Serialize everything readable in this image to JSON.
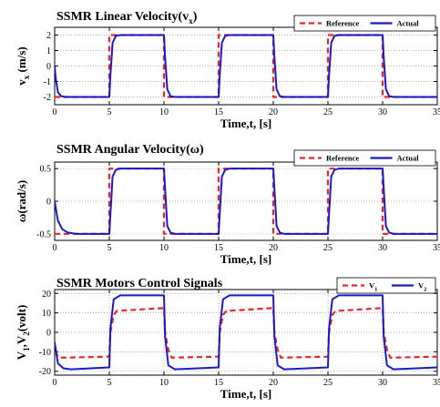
{
  "chart_data": [
    {
      "type": "line",
      "title": "SSMR Linear Velocity(v",
      "title_sub": "x",
      "title_close": ")",
      "xlabel": "Time,t, [s]",
      "ylabel": "v",
      "ylabel_sub": "x",
      "ylabel_unit": "(m/s)",
      "xlim": [
        0,
        35
      ],
      "ylim": [
        -2.5,
        2.5
      ],
      "xticks": [
        0,
        5,
        10,
        15,
        20,
        25,
        30,
        35
      ],
      "yticks": [
        -2,
        -1,
        0,
        1,
        2
      ],
      "grid": true,
      "legend_position": "top-right",
      "series": [
        {
          "name": "Reference",
          "color": "#e8262a",
          "style": "dashed",
          "x": [
            0,
            5,
            5,
            10,
            10,
            15,
            15,
            20,
            20,
            25,
            25,
            30,
            30,
            35
          ],
          "y": [
            -2,
            -2,
            2,
            2,
            -2,
            -2,
            2,
            2,
            -2,
            -2,
            2,
            2,
            -2,
            -2
          ]
        },
        {
          "name": "Actual",
          "color": "#1a1ac8",
          "style": "solid",
          "x": [
            0,
            0.1,
            0.3,
            0.6,
            1.0,
            5.0,
            5.1,
            5.3,
            5.6,
            6.0,
            10.0,
            10.1,
            10.3,
            10.6,
            11.0,
            15.0,
            15.1,
            15.3,
            15.6,
            16.0,
            20.0,
            20.1,
            20.3,
            20.6,
            21.0,
            25.0,
            25.1,
            25.3,
            25.6,
            26.0,
            30.0,
            30.1,
            30.3,
            30.6,
            31.0,
            35.0
          ],
          "y": [
            0,
            -0.8,
            -1.7,
            -1.95,
            -2,
            -2,
            -0.6,
            1.5,
            1.95,
            2,
            2,
            0.6,
            -1.5,
            -1.95,
            -2,
            -2,
            -0.6,
            1.5,
            1.95,
            2,
            2,
            0.6,
            -1.5,
            -1.95,
            -2,
            -2,
            -0.6,
            1.5,
            1.95,
            2,
            2,
            0.6,
            -1.5,
            -1.95,
            -2,
            -2
          ]
        }
      ]
    },
    {
      "type": "line",
      "title": "SSMR Angular Velocity(ω)",
      "xlabel": "Time,t, [s]",
      "ylabel": "ω(rad/s)",
      "xlim": [
        0,
        35
      ],
      "ylim": [
        -0.6,
        0.6
      ],
      "xticks": [
        0,
        5,
        10,
        15,
        20,
        25,
        30,
        35
      ],
      "yticks": [
        -0.5,
        0,
        0.5
      ],
      "grid": true,
      "legend_position": "top-right",
      "series": [
        {
          "name": "Reference",
          "color": "#e8262a",
          "style": "dashed",
          "x": [
            0,
            5,
            5,
            10,
            10,
            15,
            15,
            20,
            20,
            25,
            25,
            30,
            30,
            35
          ],
          "y": [
            -0.5,
            -0.5,
            0.5,
            0.5,
            -0.5,
            -0.5,
            0.5,
            0.5,
            -0.5,
            -0.5,
            0.5,
            0.5,
            -0.5,
            -0.5
          ]
        },
        {
          "name": "Actual",
          "color": "#1a1ac8",
          "style": "solid",
          "x": [
            0,
            0.3,
            0.7,
            1.2,
            2.0,
            5.0,
            5.1,
            5.3,
            5.6,
            6.0,
            10.0,
            10.1,
            10.3,
            10.6,
            11.0,
            15.0,
            15.1,
            15.3,
            15.6,
            16.0,
            20.0,
            20.1,
            20.3,
            20.6,
            21.0,
            25.0,
            25.1,
            25.3,
            25.6,
            26.0,
            30.0,
            30.1,
            30.3,
            30.6,
            31.0,
            35.0
          ],
          "y": [
            0,
            -0.3,
            -0.43,
            -0.48,
            -0.5,
            -0.5,
            -0.2,
            0.38,
            0.48,
            0.5,
            0.5,
            0.2,
            -0.38,
            -0.48,
            -0.5,
            -0.5,
            -0.2,
            0.38,
            0.48,
            0.5,
            0.5,
            0.2,
            -0.38,
            -0.48,
            -0.5,
            -0.5,
            -0.2,
            0.38,
            0.48,
            0.5,
            0.5,
            0.2,
            -0.38,
            -0.48,
            -0.5,
            -0.5
          ]
        }
      ]
    },
    {
      "type": "line",
      "title": "SSMR Motors Control Signals",
      "xlabel": "Time,t, [s]",
      "ylabel_parts": [
        {
          "text": "V",
          "sub": "1"
        },
        {
          "text": ",V",
          "sub": "2"
        },
        {
          "text": "(volt)",
          "sub": ""
        }
      ],
      "xlim": [
        0,
        35
      ],
      "ylim": [
        -22,
        22
      ],
      "xticks": [
        0,
        5,
        10,
        15,
        20,
        25,
        30,
        35
      ],
      "yticks": [
        -20,
        -10,
        0,
        10,
        20
      ],
      "grid": true,
      "legend_position": "top-right",
      "series": [
        {
          "name": "V",
          "name_sub": "1",
          "color": "#e8262a",
          "style": "dashed",
          "x": [
            0,
            0.4,
            1.0,
            5.0,
            5.1,
            5.4,
            5.7,
            10.0,
            10.1,
            10.4,
            10.7,
            15.0,
            15.1,
            15.4,
            15.7,
            20.0,
            20.1,
            20.4,
            20.7,
            25.0,
            25.1,
            25.4,
            25.7,
            30.0,
            30.1,
            30.4,
            30.7,
            35.0
          ],
          "y": [
            -10,
            -13,
            -13,
            -12.5,
            0,
            9,
            11,
            12.5,
            0,
            -9,
            -13,
            -12.5,
            0,
            9,
            11,
            12.5,
            0,
            -9,
            -13,
            -12.5,
            0,
            9,
            11,
            12.5,
            0,
            -9,
            -13,
            -12.5
          ]
        },
        {
          "name": "V",
          "name_sub": "2",
          "color": "#1a1ac8",
          "style": "solid",
          "x": [
            0,
            0.3,
            0.8,
            1.5,
            5.0,
            5.1,
            5.4,
            6.0,
            10.0,
            10.1,
            10.4,
            11.0,
            15.0,
            15.1,
            15.4,
            16.0,
            20.0,
            20.1,
            20.4,
            21.0,
            25.0,
            25.1,
            25.4,
            26.0,
            30.0,
            30.1,
            30.4,
            31.0,
            35.0
          ],
          "y": [
            -5,
            -16,
            -18.5,
            -19,
            -18,
            2,
            17,
            19,
            19,
            -2,
            -17,
            -19,
            -18,
            2,
            17,
            19,
            19,
            -2,
            -17,
            -19,
            -18,
            2,
            17,
            19,
            19,
            -2,
            -17,
            -19,
            -18
          ]
        }
      ]
    }
  ]
}
